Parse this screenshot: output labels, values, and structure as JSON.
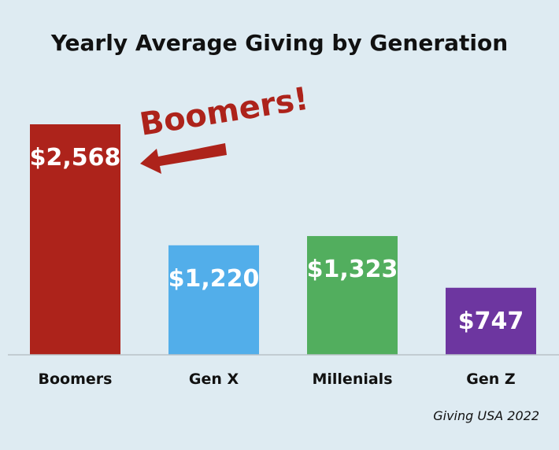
{
  "chart_data": {
    "type": "bar",
    "title": "Yearly Average Giving by Generation",
    "categories": [
      "Boomers",
      "Gen X",
      "Millenials",
      "Gen Z"
    ],
    "values": [
      2568,
      1220,
      1323,
      747
    ],
    "value_labels": [
      "$2,568",
      "$1,220",
      "$1,323",
      "$747"
    ],
    "colors": [
      "#ad231b",
      "#52aeea",
      "#52ae5e",
      "#6d36a0"
    ],
    "ylim": [
      0,
      2568
    ],
    "grid": false,
    "annotation": {
      "text": "Boomers!",
      "color": "#ad231b",
      "points_to": "Boomers"
    },
    "source": "Giving USA 2022"
  }
}
